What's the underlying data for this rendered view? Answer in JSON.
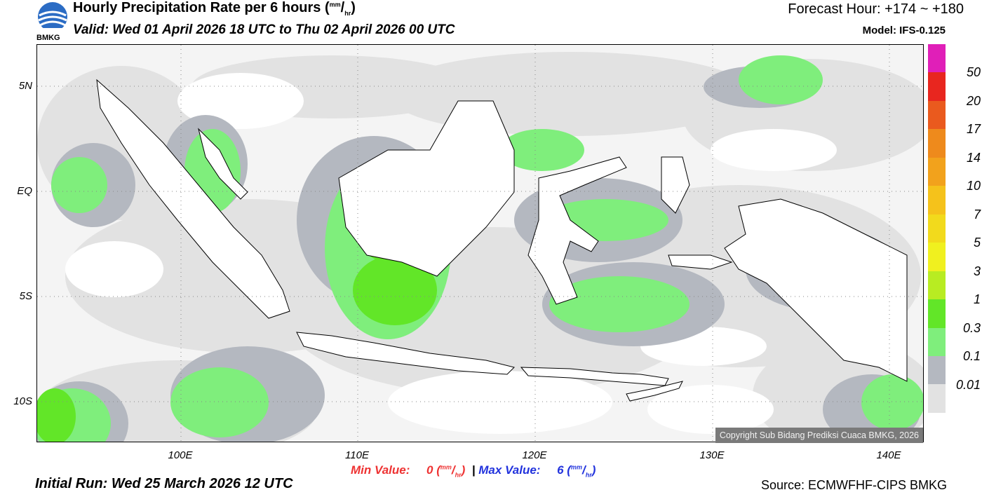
{
  "header": {
    "title_main": "Hourly Precipitation Rate per 6 hours (",
    "title_unit_sup": "mm",
    "title_unit_sub": "hr",
    "title_close": ")",
    "valid": "Valid: Wed 01 April 2026 18 UTC to Thu 02 April 2026 00 UTC",
    "forecast_hour": "Forecast Hour: +174 ~ +180",
    "model": "Model: IFS-0.125",
    "logo_text": "BMKG"
  },
  "map": {
    "lat_labels": [
      "5N",
      "EQ",
      "5S",
      "10S"
    ],
    "lon_labels": [
      "100E",
      "110E",
      "120E",
      "130E",
      "140E"
    ],
    "copyright": "Copyright Sub Bidang Prediksi Cuaca BMKG, 2026"
  },
  "colorbar": {
    "colors": [
      "#e01fb8",
      "#e8261f",
      "#ea5a1e",
      "#ee8a1c",
      "#f2a21c",
      "#f5c21b",
      "#f2da1c",
      "#f0f01f",
      "#b8ec22",
      "#62e628",
      "#7fee7c",
      "#b4b8c0",
      "#e2e2e2"
    ],
    "labels": [
      "50",
      "20",
      "17",
      "14",
      "10",
      "7",
      "5",
      "3",
      "1",
      "0.3",
      "0.1",
      "0.01"
    ]
  },
  "footer": {
    "min_label": "Min Value:",
    "min_value": "0",
    "max_label": "Max Value:",
    "max_value": "6",
    "unit_sup": "mm",
    "unit_sub": "hr",
    "separator": "|",
    "initial_run": "Initial Run: Wed 25 March 2026 12 UTC",
    "source": "Source: ECMWFHF-CIPS BMKG"
  }
}
